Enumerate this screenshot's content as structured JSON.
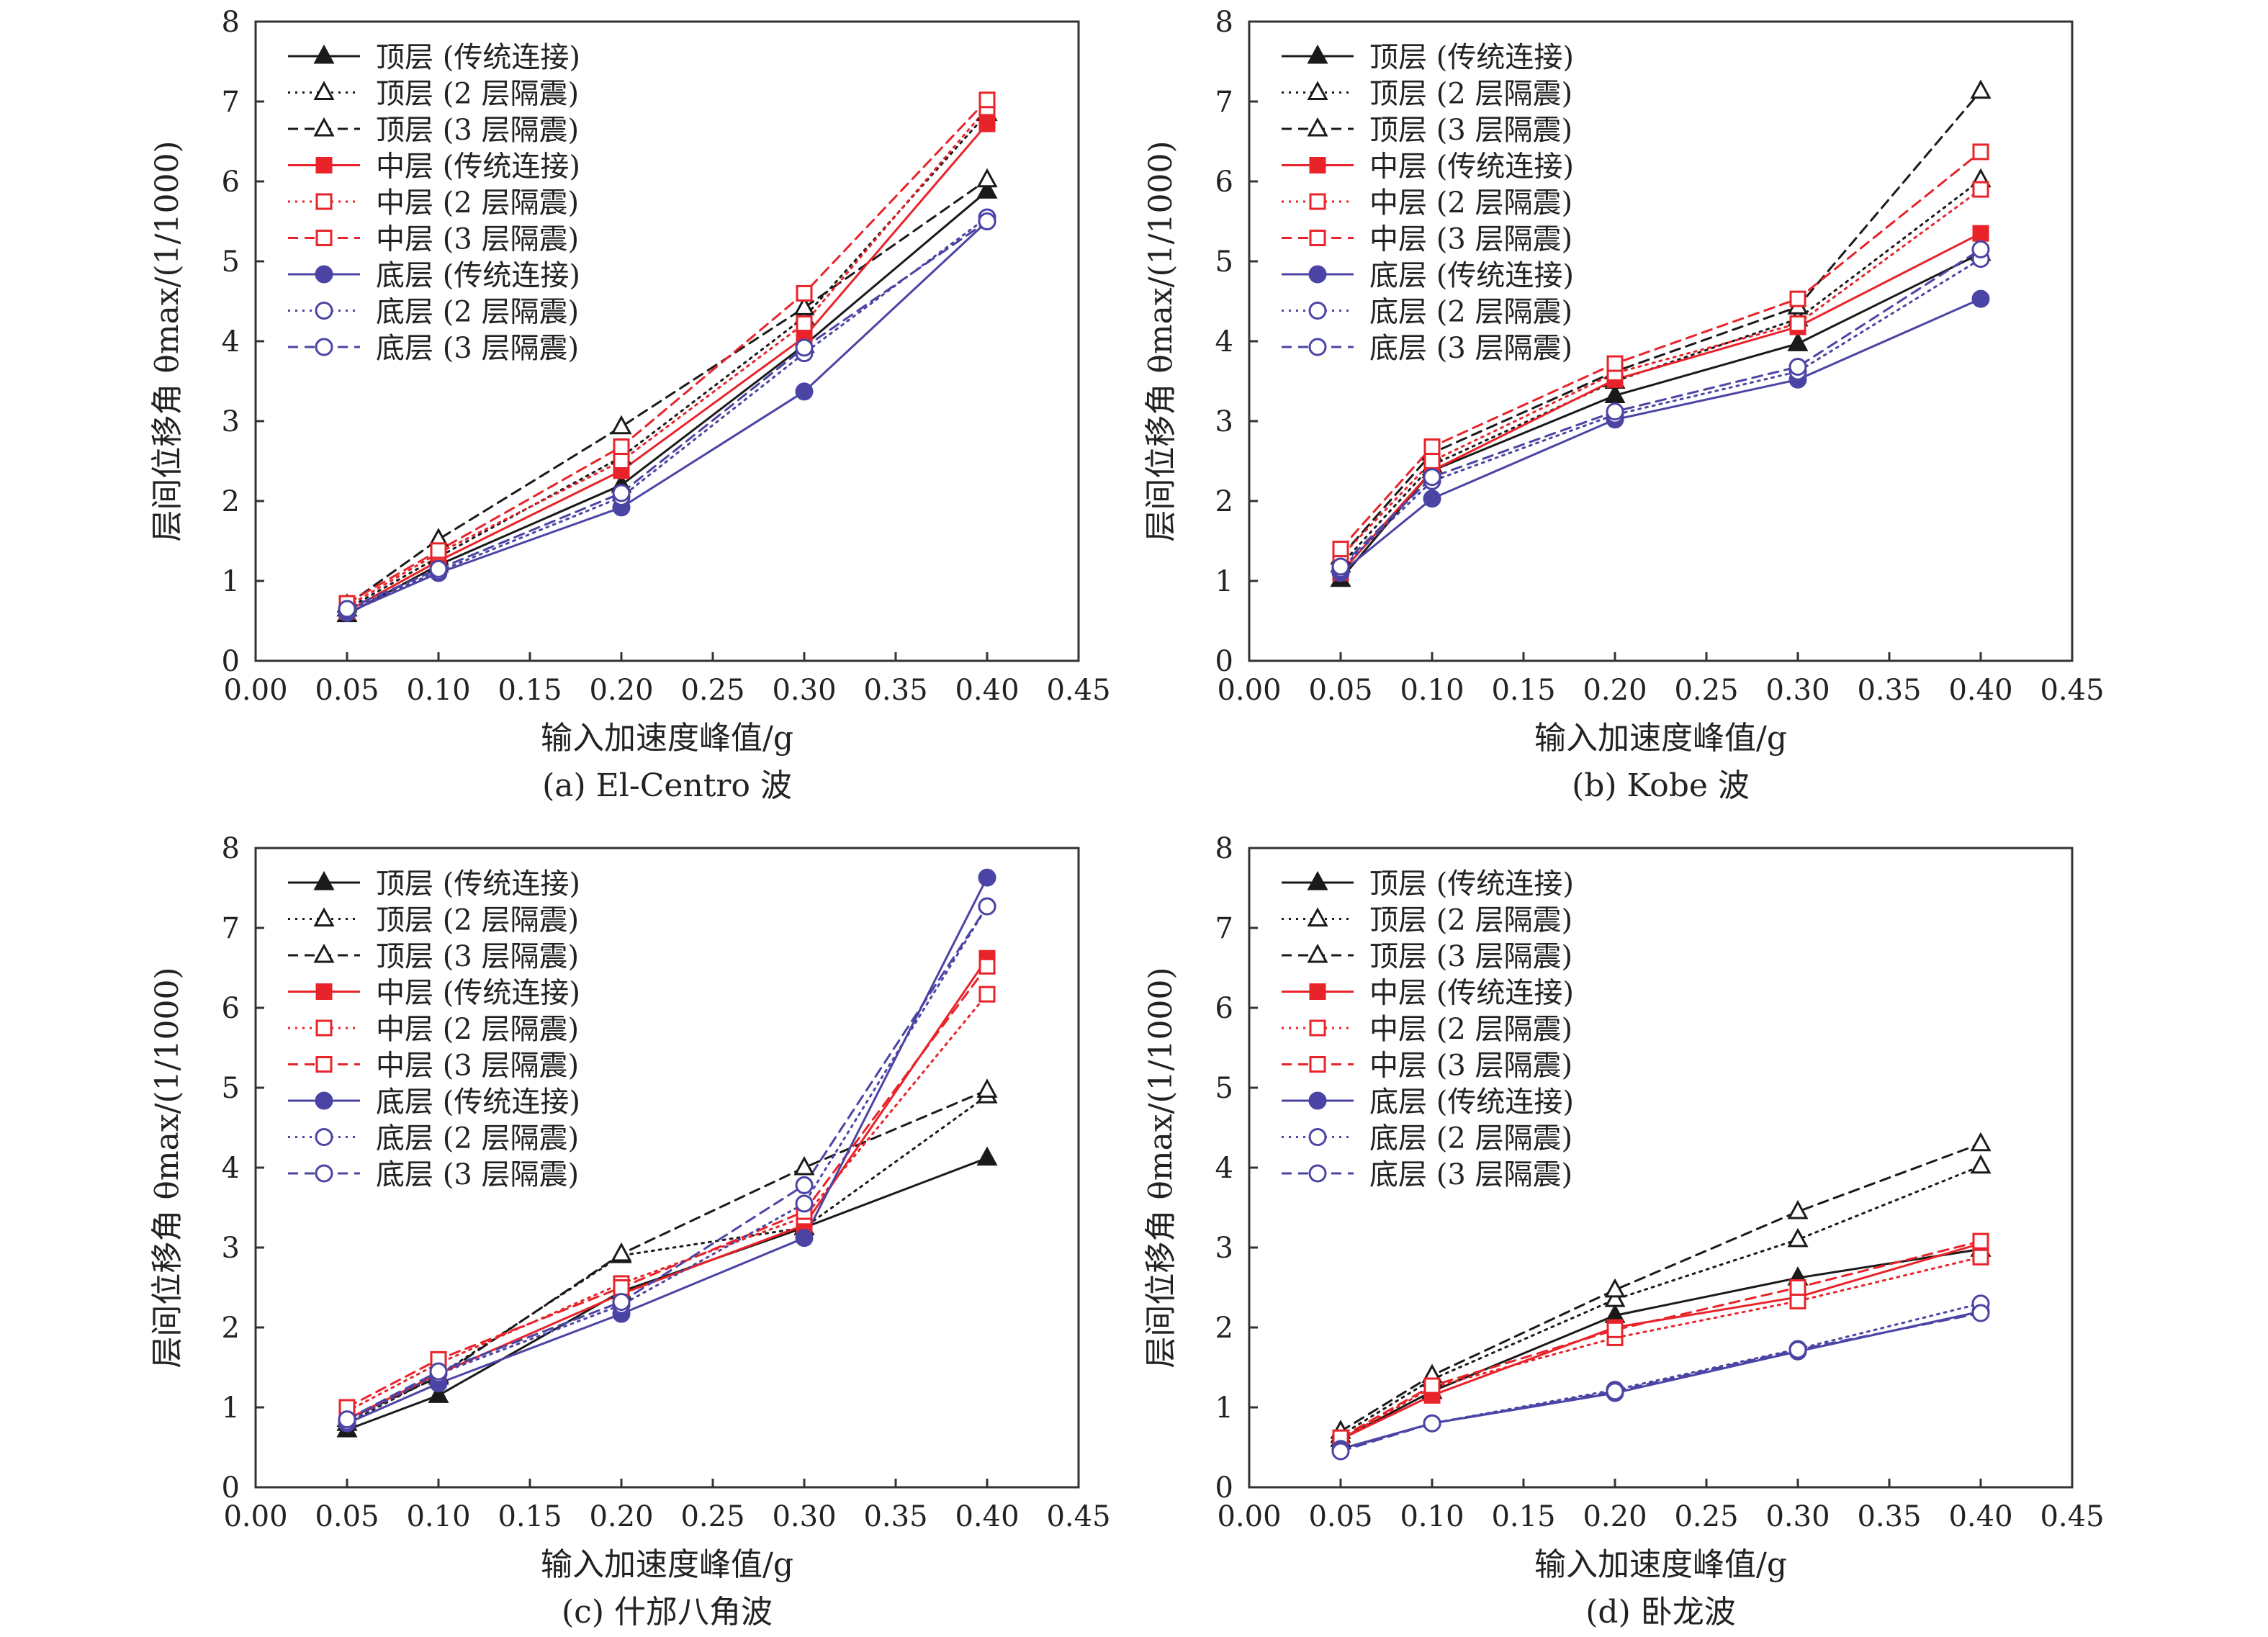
{
  "legend_entries": [
    {
      "label": "顶层 (传统连接)",
      "color": "#1a1a1a",
      "dash": "solid",
      "marker": "triangle",
      "filled": true
    },
    {
      "label": "顶层 (2 层隔震)",
      "color": "#1a1a1a",
      "dash": "dotted",
      "marker": "triangle",
      "filled": false
    },
    {
      "label": "顶层 (3 层隔震)",
      "color": "#1a1a1a",
      "dash": "dashed",
      "marker": "triangle",
      "filled": false
    },
    {
      "label": "中层 (传统连接)",
      "color": "#e8232a",
      "dash": "solid",
      "marker": "square",
      "filled": true
    },
    {
      "label": "中层 (2 层隔震)",
      "color": "#e8232a",
      "dash": "dotted",
      "marker": "square",
      "filled": false
    },
    {
      "label": "中层 (3 层隔震)",
      "color": "#e8232a",
      "dash": "dashed",
      "marker": "square",
      "filled": false
    },
    {
      "label": "底层 (传统连接)",
      "color": "#4b44a4",
      "dash": "solid",
      "marker": "circle",
      "filled": true
    },
    {
      "label": "底层 (2 层隔震)",
      "color": "#4b44a4",
      "dash": "dotted",
      "marker": "circle",
      "filled": false
    },
    {
      "label": "底层 (3 层隔震)",
      "color": "#4b44a4",
      "dash": "dashed",
      "marker": "circle",
      "filled": false
    }
  ],
  "chart_data": [
    {
      "type": "line",
      "caption": "(a) El-Centro 波",
      "xlabel": "输入加速度峰值/g",
      "ylabel": "层间位移角 θmax/(1/1000)",
      "xlim": [
        0.0,
        0.45
      ],
      "ylim": [
        0,
        8
      ],
      "xticks": [
        "0.00",
        "0.05",
        "0.10",
        "0.15",
        "0.20",
        "0.25",
        "0.30",
        "0.35",
        "0.40",
        "0.45"
      ],
      "yticks": [
        "0",
        "1",
        "2",
        "3",
        "4",
        "5",
        "6",
        "7",
        "8"
      ],
      "legend_position": "top-left",
      "x": [
        0.05,
        0.1,
        0.2,
        0.3,
        0.4
      ],
      "series": [
        {
          "name": "顶层 (传统连接)",
          "values": [
            0.58,
            1.2,
            2.2,
            3.95,
            5.88
          ]
        },
        {
          "name": "顶层 (2 层隔震)",
          "values": [
            0.65,
            1.3,
            2.55,
            4.3,
            6.85
          ]
        },
        {
          "name": "顶层 (3 层隔震)",
          "values": [
            0.7,
            1.52,
            2.93,
            4.42,
            6.02
          ]
        },
        {
          "name": "中层 (传统连接)",
          "values": [
            0.62,
            1.25,
            2.38,
            4.05,
            6.72
          ]
        },
        {
          "name": "中层 (2 层隔震)",
          "values": [
            0.68,
            1.35,
            2.5,
            4.22,
            6.92
          ]
        },
        {
          "name": "中层 (3 层隔震)",
          "values": [
            0.72,
            1.38,
            2.68,
            4.6,
            7.02
          ]
        },
        {
          "name": "底层 (传统连接)",
          "values": [
            0.6,
            1.1,
            1.92,
            3.37,
            5.5
          ]
        },
        {
          "name": "底层 (2 层隔震)",
          "values": [
            0.63,
            1.12,
            2.05,
            3.85,
            5.55
          ]
        },
        {
          "name": "底层 (3 层隔震)",
          "values": [
            0.65,
            1.15,
            2.1,
            3.92,
            5.5
          ]
        }
      ]
    },
    {
      "type": "line",
      "caption": "(b) Kobe 波",
      "xlabel": "输入加速度峰值/g",
      "ylabel": "层间位移角 θmax/(1/1000)",
      "xlim": [
        0.0,
        0.45
      ],
      "ylim": [
        0,
        8
      ],
      "xticks": [
        "0.00",
        "0.05",
        "0.10",
        "0.15",
        "0.20",
        "0.25",
        "0.30",
        "0.35",
        "0.40",
        "0.45"
      ],
      "yticks": [
        "0",
        "1",
        "2",
        "3",
        "4",
        "5",
        "6",
        "7",
        "8"
      ],
      "legend_position": "top-left",
      "x": [
        0.05,
        0.1,
        0.2,
        0.3,
        0.4
      ],
      "series": [
        {
          "name": "顶层 (传统连接)",
          "values": [
            1.02,
            2.38,
            3.32,
            3.97,
            5.1
          ]
        },
        {
          "name": "顶层 (2 层隔震)",
          "values": [
            1.2,
            2.45,
            3.5,
            4.28,
            6.02
          ]
        },
        {
          "name": "顶层 (3 层隔震)",
          "values": [
            1.3,
            2.6,
            3.62,
            4.43,
            7.13
          ]
        },
        {
          "name": "中层 (传统连接)",
          "values": [
            1.1,
            2.38,
            3.52,
            4.18,
            5.35
          ]
        },
        {
          "name": "中层 (2 层隔震)",
          "values": [
            1.3,
            2.5,
            3.6,
            4.22,
            5.9
          ]
        },
        {
          "name": "中层 (3 层隔震)",
          "values": [
            1.4,
            2.68,
            3.72,
            4.53,
            6.37
          ]
        },
        {
          "name": "底层 (传统连接)",
          "values": [
            1.1,
            2.03,
            3.02,
            3.52,
            4.53
          ]
        },
        {
          "name": "底层 (2 层隔震)",
          "values": [
            1.15,
            2.25,
            3.08,
            3.62,
            5.03
          ]
        },
        {
          "name": "底层 (3 层隔震)",
          "values": [
            1.18,
            2.3,
            3.12,
            3.68,
            5.15
          ]
        }
      ]
    },
    {
      "type": "line",
      "caption": "(c) 什邡八角波",
      "xlabel": "输入加速度峰值/g",
      "ylabel": "层间位移角 θmax/(1/1000)",
      "xlim": [
        0.0,
        0.45
      ],
      "ylim": [
        0,
        8
      ],
      "xticks": [
        "0.00",
        "0.05",
        "0.10",
        "0.15",
        "0.20",
        "0.25",
        "0.30",
        "0.35",
        "0.40",
        "0.45"
      ],
      "yticks": [
        "0",
        "1",
        "2",
        "3",
        "4",
        "5",
        "6",
        "7",
        "8"
      ],
      "legend_position": "top-left",
      "x": [
        0.05,
        0.1,
        0.2,
        0.3,
        0.4
      ],
      "series": [
        {
          "name": "顶层 (传统连接)",
          "values": [
            0.72,
            1.15,
            2.45,
            3.25,
            4.12
          ]
        },
        {
          "name": "顶层 (2 层隔震)",
          "values": [
            0.8,
            1.4,
            2.9,
            3.25,
            4.9
          ]
        },
        {
          "name": "顶层 (3 层隔震)",
          "values": [
            0.85,
            1.38,
            2.92,
            4.0,
            4.97
          ]
        },
        {
          "name": "中层 (传统连接)",
          "values": [
            0.85,
            1.42,
            2.42,
            3.28,
            6.62
          ]
        },
        {
          "name": "中层 (2 层隔震)",
          "values": [
            0.95,
            1.55,
            2.55,
            3.38,
            6.17
          ]
        },
        {
          "name": "中层 (3 层隔震)",
          "values": [
            1.0,
            1.6,
            2.5,
            3.45,
            6.52
          ]
        },
        {
          "name": "底层 (传统连接)",
          "values": [
            0.8,
            1.3,
            2.17,
            3.12,
            7.63
          ]
        },
        {
          "name": "底层 (2 层隔震)",
          "values": [
            0.82,
            1.42,
            2.28,
            3.55,
            7.27
          ]
        },
        {
          "name": "底层 (3 层隔震)",
          "values": [
            0.85,
            1.45,
            2.32,
            3.78,
            7.27
          ]
        }
      ]
    },
    {
      "type": "line",
      "caption": "(d) 卧龙波",
      "xlabel": "输入加速度峰值/g",
      "ylabel": "层间位移角 θmax/(1/1000)",
      "xlim": [
        0.0,
        0.45
      ],
      "ylim": [
        0,
        8
      ],
      "xticks": [
        "0.00",
        "0.05",
        "0.10",
        "0.15",
        "0.20",
        "0.25",
        "0.30",
        "0.35",
        "0.40",
        "0.45"
      ],
      "yticks": [
        "0",
        "1",
        "2",
        "3",
        "4",
        "5",
        "6",
        "7",
        "8"
      ],
      "legend_position": "top-left",
      "x": [
        0.05,
        0.1,
        0.2,
        0.3,
        0.4
      ],
      "series": [
        {
          "name": "顶层 (传统连接)",
          "values": [
            0.6,
            1.2,
            2.15,
            2.62,
            2.98
          ]
        },
        {
          "name": "顶层 (2 层隔震)",
          "values": [
            0.65,
            1.35,
            2.35,
            3.1,
            4.02
          ]
        },
        {
          "name": "顶层 (3 层隔震)",
          "values": [
            0.7,
            1.4,
            2.47,
            3.45,
            4.3
          ]
        },
        {
          "name": "中层 (传统连接)",
          "values": [
            0.6,
            1.15,
            2.0,
            2.38,
            3.05
          ]
        },
        {
          "name": "中层 (2 层隔震)",
          "values": [
            0.6,
            1.25,
            1.87,
            2.33,
            2.88
          ]
        },
        {
          "name": "中层 (3 层隔震)",
          "values": [
            0.62,
            1.27,
            1.97,
            2.5,
            3.08
          ]
        },
        {
          "name": "底层 (传统连接)",
          "values": [
            0.48,
            0.8,
            1.18,
            1.7,
            2.2
          ]
        },
        {
          "name": "底层 (2 层隔震)",
          "values": [
            0.47,
            0.8,
            1.22,
            1.73,
            2.3
          ]
        },
        {
          "name": "底层 (3 层隔震)",
          "values": [
            0.45,
            0.8,
            1.2,
            1.72,
            2.18
          ]
        }
      ]
    }
  ]
}
